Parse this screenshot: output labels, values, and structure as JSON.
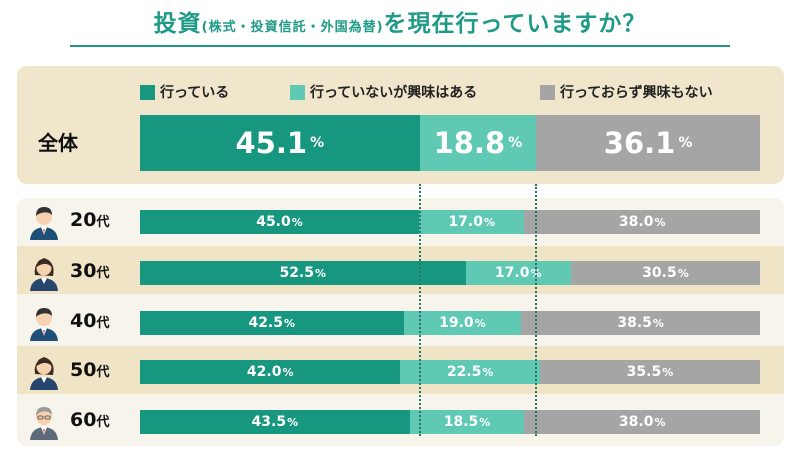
{
  "title": {
    "main_a": "投資",
    "sub": "(株式・投資信託・外国為替)",
    "main_b": "を現在行っていますか？"
  },
  "colors": {
    "investing": "#17977f",
    "interested": "#5fc9b4",
    "not_interested": "#a5a5a5",
    "title": "#1e9a86"
  },
  "percent_unit": "%",
  "legend": [
    {
      "label": "行っている",
      "color": "#17977f"
    },
    {
      "label": "行っていないが興味はある",
      "color": "#5fc9b4"
    },
    {
      "label": "行っておらず興味もない",
      "color": "#a5a5a5"
    }
  ],
  "chart_data": {
    "type": "bar",
    "orientation": "horizontal",
    "stacked": true,
    "categories": [
      "全体",
      "20代",
      "30代",
      "40代",
      "50代",
      "60代"
    ],
    "series": [
      {
        "name": "行っている",
        "values": [
          45.1,
          45.0,
          52.5,
          42.5,
          42.0,
          43.5
        ]
      },
      {
        "name": "行っていないが興味はある",
        "values": [
          18.8,
          17.0,
          17.0,
          19.0,
          22.5,
          18.5
        ]
      },
      {
        "name": "行っておらず興味もない",
        "values": [
          36.1,
          38.0,
          30.5,
          38.5,
          35.5,
          38.0
        ]
      }
    ],
    "unit": "%",
    "xlim": [
      0,
      100
    ],
    "legend_position": "top",
    "grid": false,
    "reference_lines": "dotted vertical lines at the overall (全体) segment boundaries"
  },
  "age_suffix": "代",
  "avatars": [
    "man-avatar-icon",
    "woman-avatar-icon",
    "man-avatar-icon",
    "woman-avatar-icon",
    "older-man-avatar-icon"
  ]
}
